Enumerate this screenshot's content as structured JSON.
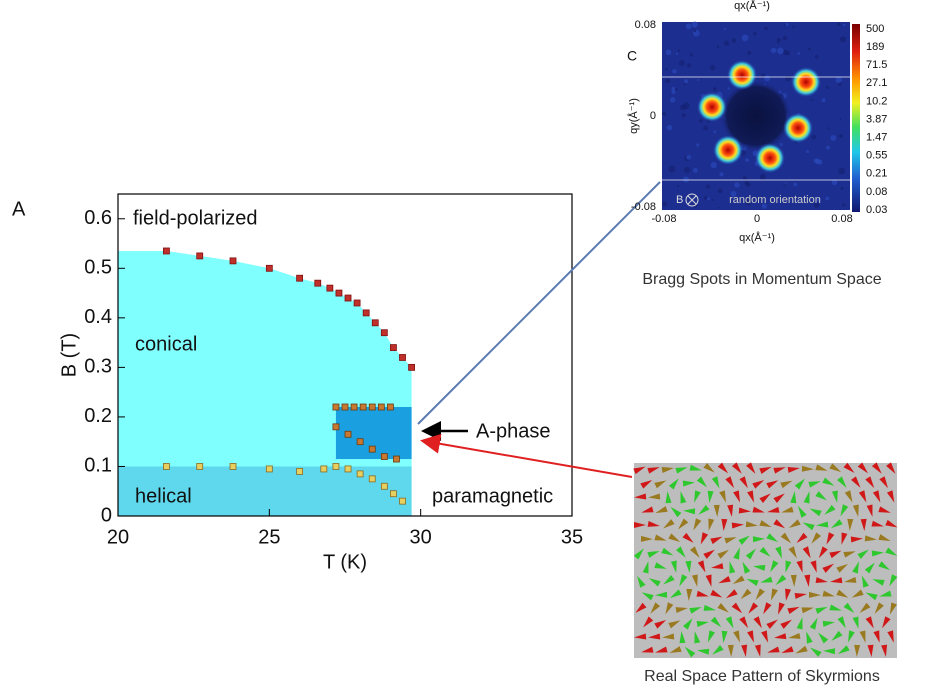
{
  "chart_data": {
    "type": "scatter",
    "panel": "A",
    "xlabel": "T (K)",
    "ylabel": "B (T)",
    "xlim": [
      20,
      35
    ],
    "xticks": [
      20,
      25,
      30,
      35
    ],
    "ylim": [
      0,
      0.65
    ],
    "yticks": [
      0,
      0.1,
      0.2,
      0.3,
      0.4,
      0.5,
      0.6
    ],
    "annotations": [
      "field-polarized",
      "conical",
      "helical",
      "paramagnetic",
      "A-phase"
    ],
    "series": [
      {
        "color": "#c0302a",
        "x": [
          21.6,
          22.7,
          23.8,
          25,
          26,
          26.6,
          27,
          27.3,
          27.6,
          27.9,
          28.2,
          28.5,
          28.8,
          29.1,
          29.4,
          29.7
        ],
        "values": [
          0.535,
          0.525,
          0.515,
          0.5,
          0.48,
          0.47,
          0.46,
          0.45,
          0.44,
          0.43,
          0.41,
          0.39,
          0.37,
          0.34,
          0.32,
          0.3
        ]
      },
      {
        "color": "#c87830",
        "x": [
          27.2,
          27.5,
          27.8,
          28.1,
          28.4,
          28.7,
          29.0
        ],
        "values": [
          0.22,
          0.22,
          0.22,
          0.22,
          0.22,
          0.22,
          0.22
        ]
      },
      {
        "color": "#c87830",
        "x": [
          27.2,
          27.6,
          28.0,
          28.4,
          28.8,
          29.2
        ],
        "values": [
          0.18,
          0.165,
          0.15,
          0.135,
          0.12,
          0.115
        ]
      },
      {
        "color": "#e8d060",
        "x": [
          21.6,
          22.7,
          23.8,
          25,
          26,
          26.8,
          27.2,
          27.6,
          28,
          28.4,
          28.8,
          29.1,
          29.4
        ],
        "values": [
          0.1,
          0.1,
          0.1,
          0.095,
          0.09,
          0.095,
          0.1,
          0.095,
          0.085,
          0.075,
          0.06,
          0.045,
          0.03
        ]
      }
    ]
  },
  "bragg": {
    "panel": "C",
    "top_label": "qx(Å⁻¹)",
    "xlabel": "qx(Å⁻¹)",
    "ylabel": "qy(Å⁻¹)",
    "xticks": [
      "-0.08",
      "0",
      "0.08"
    ],
    "yticks": [
      "0.08",
      "0",
      "-0.08"
    ],
    "colorbar": [
      "500",
      "189",
      "71.5",
      "27.1",
      "10.2",
      "3.87",
      "1.47",
      "0.55",
      "0.21",
      "0.08",
      "0.03"
    ],
    "field": "B",
    "note": "random orientation",
    "caption": "Bragg Spots in Momentum Space"
  },
  "skyrmion": {
    "caption": "Real Space Pattern of Skyrmions"
  }
}
